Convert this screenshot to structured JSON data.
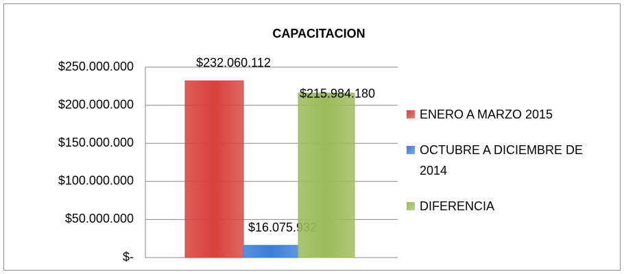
{
  "chart_data": {
    "type": "bar",
    "title": "CAPACITACION",
    "series": [
      {
        "name": "ENERO A MARZO 2015",
        "color": "#d9403b",
        "values": [
          232060112
        ],
        "value_labels": [
          "$232.060.112"
        ]
      },
      {
        "name": "OCTUBRE A DICIEMBRE DE 2014",
        "color": "#3b7dd8",
        "values": [
          16075932
        ],
        "value_labels": [
          "$16.075.932"
        ]
      },
      {
        "name": "DIFERENCIA",
        "color": "#9bbb59",
        "values": [
          215984180
        ],
        "value_labels": [
          "$215.984.180"
        ]
      }
    ],
    "ylim": [
      0,
      250000000
    ],
    "yticks": [
      {
        "value": 0,
        "label": "$-"
      },
      {
        "value": 50000000,
        "label": "$50.000.000"
      },
      {
        "value": 100000000,
        "label": "$100.000.000"
      },
      {
        "value": 150000000,
        "label": "$150.000.000"
      },
      {
        "value": 200000000,
        "label": "$200.000.000"
      },
      {
        "value": 250000000,
        "label": "$250.000.000"
      }
    ],
    "grid": true,
    "legend": "right"
  }
}
